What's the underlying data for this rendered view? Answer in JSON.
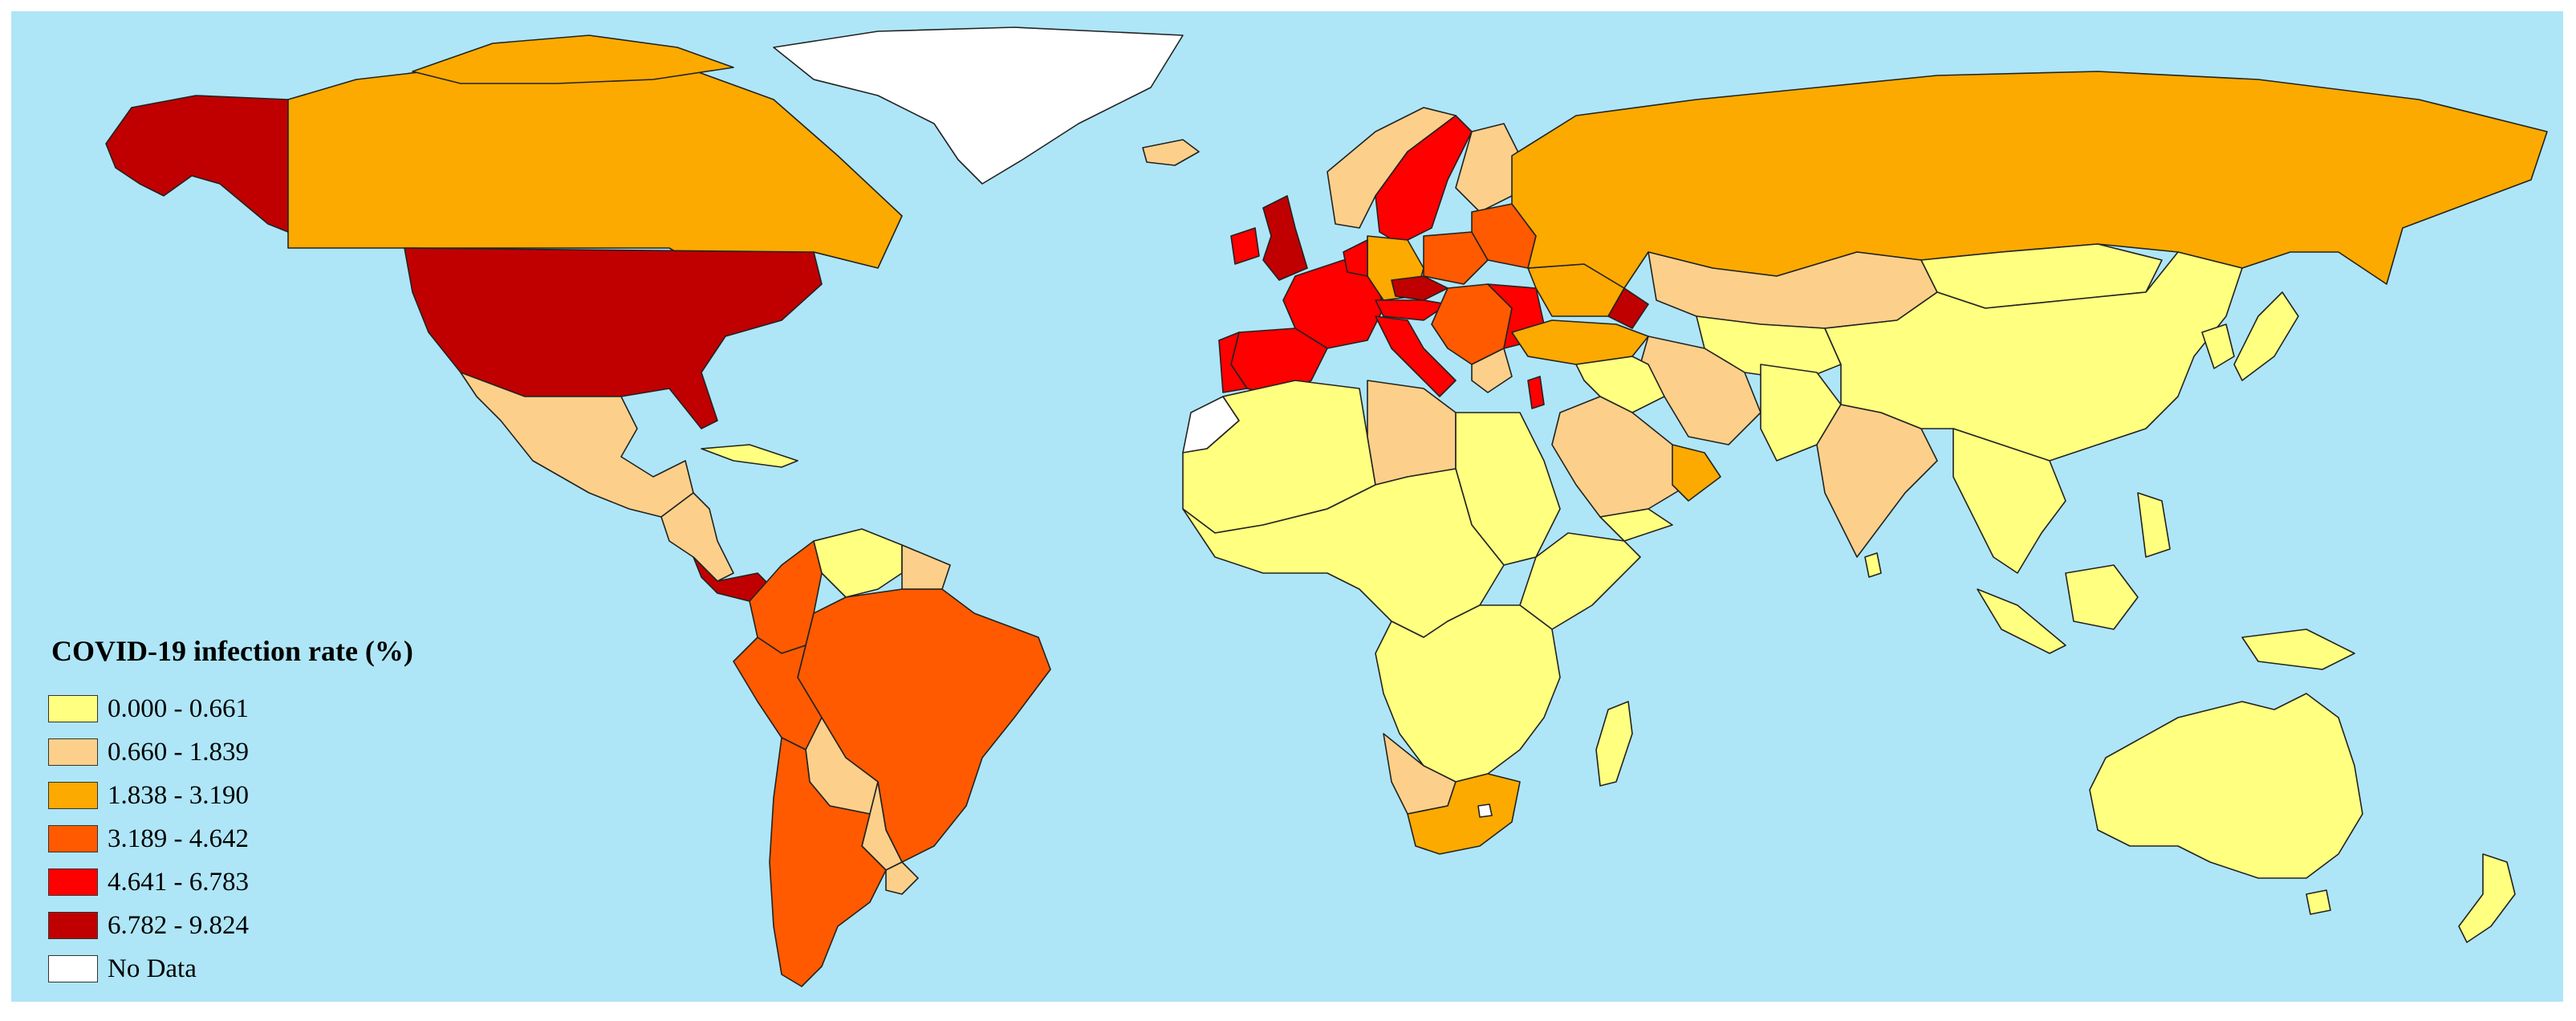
{
  "legend": {
    "title": "COVID-19 infection rate (%)",
    "items": [
      {
        "label": "0.000 - 0.661",
        "color": "#ffff80"
      },
      {
        "label": "0.660 - 1.839",
        "color": "#fcd08a"
      },
      {
        "label": "1.838 - 3.190",
        "color": "#fcaa00"
      },
      {
        "label": "3.189 - 4.642",
        "color": "#ff5a00"
      },
      {
        "label": "4.641 - 6.783",
        "color": "#ff0000"
      },
      {
        "label": "6.782 - 9.824",
        "color": "#c00000"
      },
      {
        "label": "No Data",
        "color": "#ffffff"
      }
    ]
  },
  "colors": {
    "ocean": "#aee6f7"
  }
}
